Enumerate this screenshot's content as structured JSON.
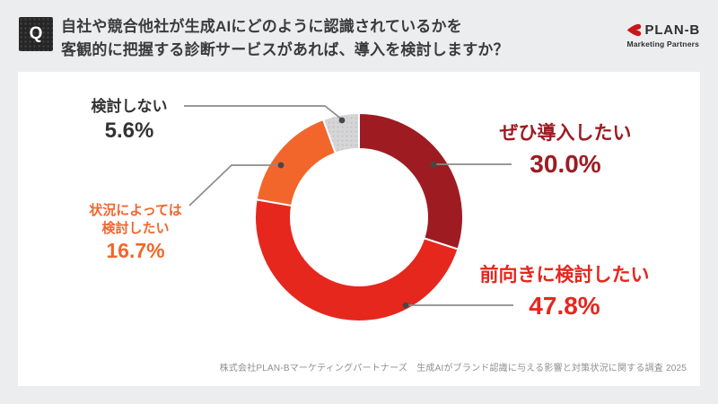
{
  "page": {
    "background": "#ecedef",
    "card_background": "#ffffff"
  },
  "header": {
    "badge": "Q",
    "question_line1": "自社や競合他社が生成AIにどのように認識されているかを",
    "question_line2": "客観的に把握する診断サービスがあれば、導入を検討しますか？"
  },
  "logo": {
    "brand": "PLAN-B",
    "subtitle": "Marketing Partners",
    "mark_color": "#c9161d",
    "text_color": "#2e2e2e"
  },
  "chart_data": {
    "type": "pie",
    "subtype": "donut",
    "title": "自社や競合他社が生成AIにどのように認識されているかを客観的に把握する診断サービスがあれば、導入を検討しますか？",
    "unit": "%",
    "start_angle_deg": 0,
    "direction": "clockwise",
    "legend_position": "callouts",
    "segments": [
      {
        "label": "ぜひ導入したい",
        "value": 30.0,
        "display": "30.0%",
        "color": "#9e1b22",
        "texture": "solid",
        "label_lines": [
          "ぜひ導入したい"
        ]
      },
      {
        "label": "前向きに検討したい",
        "value": 47.8,
        "display": "47.8%",
        "color": "#e5271e",
        "texture": "solid",
        "label_lines": [
          "前向きに検討したい"
        ]
      },
      {
        "label": "状況によっては検討したい",
        "value": 16.7,
        "display": "16.7%",
        "color": "#f2662c",
        "texture": "solid",
        "label_lines": [
          "状況によっては",
          "検討したい"
        ]
      },
      {
        "label": "検討しない",
        "value": 5.6,
        "display": "5.6%",
        "color": "#d5d5d7",
        "texture": "dots",
        "dot_color": "#bfbfc2",
        "text_color": "#333333",
        "label_lines": [
          "検討しない"
        ]
      }
    ]
  },
  "source": "株式会社PLAN-Bマーケティングパートナーズ　生成AIがブランド認識に与える影響と対策状況に関する調査 2025"
}
